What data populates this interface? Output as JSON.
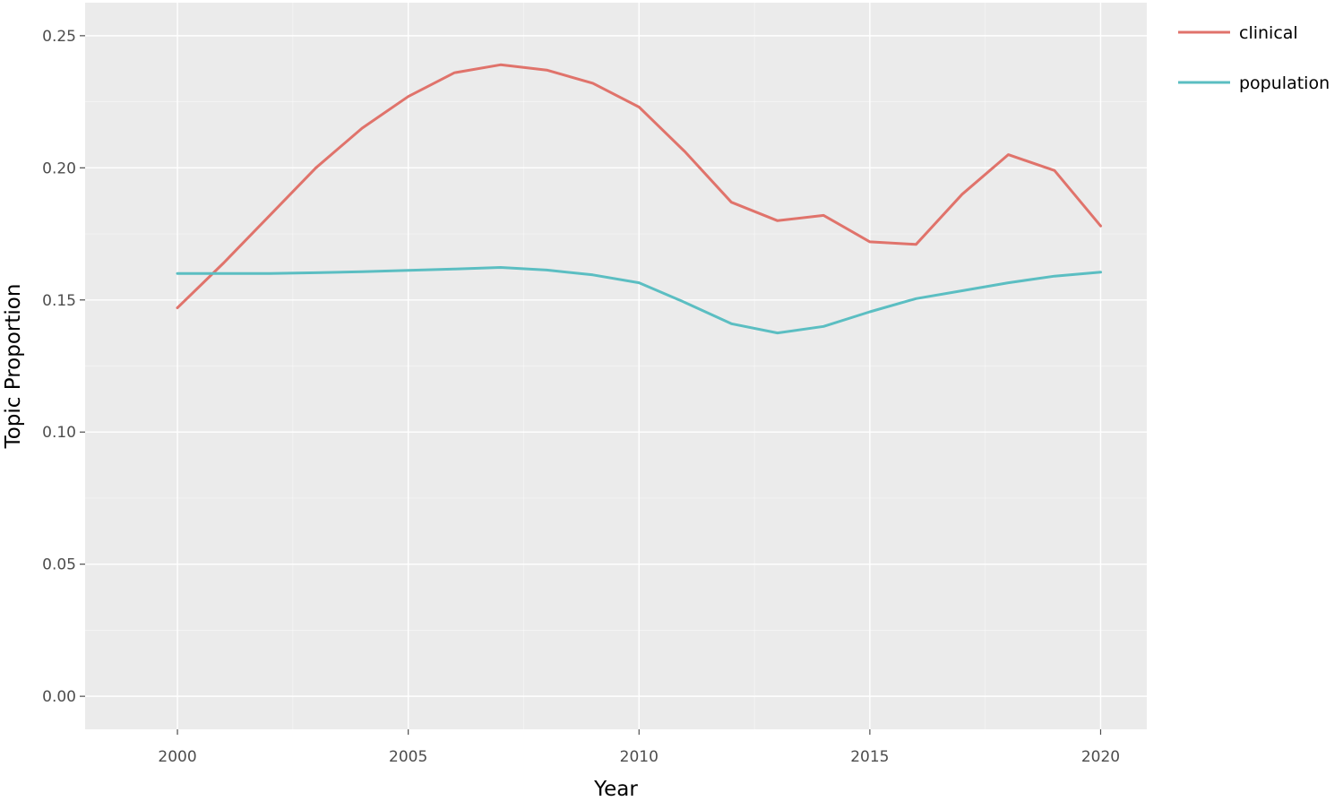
{
  "chart_data": {
    "type": "line",
    "title": "",
    "xlabel": "Year",
    "ylabel": "Topic Proportion",
    "xlim": [
      1998,
      2021
    ],
    "ylim": [
      -0.0125,
      0.2625
    ],
    "x_ticks": [
      2000,
      2005,
      2010,
      2015,
      2020
    ],
    "x_tick_labels": [
      "2000",
      "2005",
      "2010",
      "2015",
      "2020"
    ],
    "y_ticks": [
      0.0,
      0.05,
      0.1,
      0.15,
      0.2,
      0.25
    ],
    "y_tick_labels": [
      "0.00",
      "0.05",
      "0.10",
      "0.15",
      "0.20",
      "0.25"
    ],
    "x": [
      2000,
      2001,
      2002,
      2003,
      2004,
      2005,
      2006,
      2007,
      2008,
      2009,
      2010,
      2011,
      2012,
      2013,
      2014,
      2015,
      2016,
      2017,
      2018,
      2019,
      2020
    ],
    "series": [
      {
        "name": "clinical",
        "color": "#e0736b",
        "values": [
          0.147,
          0.164,
          0.182,
          0.2,
          0.215,
          0.227,
          0.236,
          0.239,
          0.237,
          0.232,
          0.223,
          0.206,
          0.187,
          0.18,
          0.182,
          0.172,
          0.171,
          0.19,
          0.205,
          0.199,
          0.178
        ]
      },
      {
        "name": "population",
        "color": "#5bbec2",
        "values": [
          0.16,
          0.16,
          0.16,
          0.1603,
          0.1607,
          0.1612,
          0.1617,
          0.1623,
          0.1613,
          0.1595,
          0.1565,
          0.149,
          0.141,
          0.1375,
          0.14,
          0.1455,
          0.1505,
          0.1535,
          0.1565,
          0.159,
          0.1605
        ]
      }
    ],
    "grid": true,
    "legend_position": "top-right",
    "panel_color": "#ebebeb",
    "grid_color": "#ffffff"
  }
}
